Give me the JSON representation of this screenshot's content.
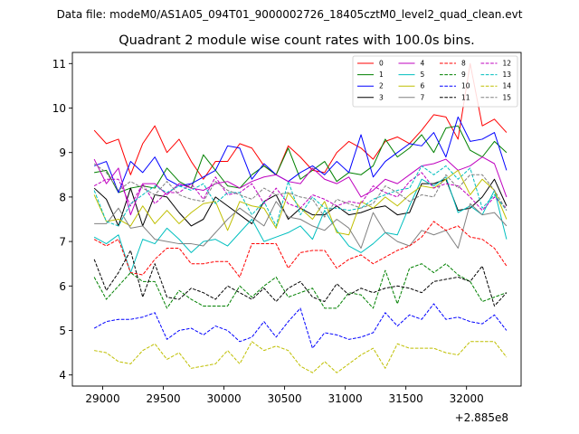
{
  "figure": {
    "suptitle": "Data file: modeM0/AS1A05_094T01_9000002726_18405cztM0_level2_quad_clean.evt"
  },
  "chart_data": {
    "type": "line",
    "title": "Quadrant 2 module wise count rates with 100.0s bins.",
    "xlabel": "",
    "ylabel": "",
    "x_offset_label": "+2.885e8",
    "xlim": [
      28750,
      32450
    ],
    "ylim": [
      3.75,
      11.25
    ],
    "xticks": [
      29000,
      29500,
      30000,
      30500,
      31000,
      31500,
      32000
    ],
    "xtick_labels": [
      "29000",
      "29500",
      "30000",
      "30500",
      "31000",
      "31500",
      "32000"
    ],
    "yticks": [
      4,
      5,
      6,
      7,
      8,
      9,
      10,
      11
    ],
    "ytick_labels": [
      "4",
      "5",
      "6",
      "7",
      "8",
      "9",
      "10",
      "11"
    ],
    "grid": false,
    "legend_position": "top-right",
    "legend_columns": 4,
    "x": [
      28930,
      29030,
      29130,
      29230,
      29330,
      29430,
      29530,
      29630,
      29730,
      29830,
      29930,
      30030,
      30130,
      30230,
      30330,
      30430,
      30530,
      30630,
      30730,
      30830,
      30930,
      31030,
      31130,
      31230,
      31330,
      31430,
      31530,
      31630,
      31730,
      31830,
      31930,
      32030,
      32130,
      32230,
      32330
    ],
    "series": [
      {
        "name": "0",
        "color": "#ff0000",
        "dash": "solid",
        "values": [
          9.5,
          9.2,
          9.3,
          8.5,
          9.2,
          9.6,
          9.0,
          9.3,
          8.8,
          8.4,
          8.8,
          8.8,
          9.2,
          9.1,
          8.7,
          8.5,
          9.15,
          8.9,
          8.6,
          8.55,
          9.0,
          9.25,
          9.1,
          8.85,
          9.25,
          9.35,
          9.2,
          9.5,
          9.85,
          9.8,
          9.3,
          11.0,
          9.6,
          9.75,
          9.45
        ]
      },
      {
        "name": "1",
        "color": "#008000",
        "dash": "solid",
        "values": [
          8.55,
          8.6,
          8.1,
          8.2,
          8.25,
          8.2,
          8.65,
          8.35,
          8.2,
          8.95,
          8.6,
          8.25,
          8.2,
          8.5,
          8.7,
          8.5,
          9.1,
          8.4,
          8.6,
          8.8,
          8.35,
          8.55,
          8.5,
          8.7,
          9.3,
          8.9,
          9.1,
          9.4,
          9.0,
          9.55,
          9.6,
          9.05,
          8.9,
          9.25,
          9.0
        ]
      },
      {
        "name": "2",
        "color": "#0000ff",
        "dash": "solid",
        "values": [
          8.7,
          8.8,
          8.1,
          8.8,
          8.55,
          8.9,
          8.4,
          8.25,
          8.3,
          8.45,
          8.6,
          9.15,
          9.1,
          8.4,
          8.75,
          8.5,
          8.35,
          8.55,
          8.7,
          8.5,
          8.8,
          8.55,
          9.4,
          8.45,
          8.8,
          9.0,
          9.2,
          9.15,
          9.45,
          8.9,
          9.8,
          9.25,
          9.3,
          9.45,
          8.6
        ]
      },
      {
        "name": "3",
        "color": "#000000",
        "dash": "solid",
        "values": [
          8.2,
          7.95,
          7.35,
          8.2,
          7.35,
          8.05,
          8.0,
          7.65,
          7.35,
          7.5,
          8.0,
          7.8,
          7.6,
          7.4,
          7.9,
          8.05,
          7.5,
          7.75,
          7.6,
          7.6,
          7.8,
          7.6,
          7.65,
          7.75,
          7.8,
          7.6,
          7.65,
          8.3,
          8.3,
          8.4,
          7.7,
          7.75,
          8.0,
          8.4,
          7.8
        ]
      },
      {
        "name": "4",
        "color": "#bf00bf",
        "dash": "solid",
        "values": [
          8.85,
          8.3,
          8.65,
          7.6,
          8.3,
          8.3,
          8.05,
          8.3,
          8.2,
          8.15,
          8.3,
          8.35,
          8.2,
          8.35,
          8.45,
          8.5,
          8.35,
          8.3,
          8.65,
          8.4,
          8.3,
          8.45,
          8.0,
          8.15,
          8.4,
          8.3,
          8.5,
          8.7,
          8.75,
          8.85,
          8.6,
          8.7,
          8.9,
          8.75,
          8.0
        ]
      },
      {
        "name": "5",
        "color": "#00bfbf",
        "dash": "solid",
        "values": [
          7.1,
          6.95,
          7.15,
          6.3,
          7.05,
          6.95,
          7.3,
          7.05,
          6.75,
          7.0,
          7.05,
          6.9,
          7.2,
          7.5,
          7.0,
          7.1,
          7.2,
          7.35,
          7.05,
          7.7,
          7.25,
          6.9,
          6.75,
          6.95,
          7.2,
          7.15,
          7.8,
          8.4,
          8.25,
          8.45,
          7.65,
          7.8,
          7.6,
          8.15,
          7.05
        ]
      },
      {
        "name": "6",
        "color": "#bfbf00",
        "dash": "solid",
        "values": [
          8.05,
          7.45,
          7.5,
          7.35,
          7.8,
          7.4,
          7.7,
          7.4,
          7.65,
          7.85,
          7.9,
          7.25,
          7.9,
          7.8,
          7.75,
          7.3,
          8.1,
          7.75,
          7.5,
          7.9,
          7.2,
          7.15,
          7.9,
          7.75,
          8.0,
          7.8,
          8.05,
          8.25,
          8.2,
          8.4,
          8.6,
          8.05,
          8.4,
          8.15,
          7.5
        ]
      },
      {
        "name": "7",
        "color": "#808080",
        "dash": "solid",
        "values": [
          7.4,
          7.4,
          7.75,
          7.3,
          7.35,
          7.05,
          7.0,
          6.95,
          6.95,
          6.9,
          7.2,
          7.5,
          7.75,
          7.55,
          7.35,
          7.9,
          7.55,
          7.5,
          7.35,
          7.25,
          7.5,
          7.3,
          6.85,
          7.65,
          7.2,
          7.0,
          6.9,
          7.25,
          7.15,
          7.25,
          6.85,
          7.85,
          7.6,
          7.65,
          7.35
        ]
      },
      {
        "name": "8",
        "color": "#ff0000",
        "dash": "dashed",
        "values": [
          7.05,
          6.9,
          7.05,
          6.3,
          6.25,
          6.6,
          6.85,
          6.85,
          6.5,
          6.5,
          6.55,
          6.55,
          6.2,
          6.95,
          6.95,
          6.95,
          6.4,
          6.75,
          6.8,
          6.8,
          6.4,
          6.6,
          6.7,
          6.5,
          6.65,
          6.8,
          6.9,
          7.1,
          7.45,
          7.25,
          7.35,
          7.1,
          7.05,
          6.85,
          6.45
        ]
      },
      {
        "name": "9",
        "color": "#008000",
        "dash": "dashed",
        "values": [
          6.2,
          5.7,
          6.0,
          6.3,
          6.1,
          6.1,
          5.5,
          5.9,
          5.7,
          5.55,
          5.55,
          5.55,
          6.0,
          5.75,
          6.0,
          6.2,
          5.75,
          5.85,
          5.95,
          5.5,
          5.5,
          5.85,
          5.8,
          5.5,
          6.35,
          5.6,
          6.4,
          6.5,
          6.3,
          6.5,
          6.25,
          6.1,
          5.65,
          5.75,
          5.85
        ]
      },
      {
        "name": "10",
        "color": "#0000ff",
        "dash": "dashed",
        "values": [
          5.05,
          5.2,
          5.25,
          5.25,
          5.3,
          5.4,
          4.8,
          5.0,
          5.05,
          4.9,
          5.1,
          5.0,
          4.75,
          4.85,
          5.2,
          4.85,
          5.2,
          5.5,
          4.6,
          4.95,
          4.9,
          4.8,
          4.85,
          4.95,
          5.4,
          5.1,
          5.35,
          5.25,
          5.6,
          5.25,
          5.3,
          5.2,
          5.15,
          5.35,
          5.0
        ]
      },
      {
        "name": "11",
        "color": "#000000",
        "dash": "dashed",
        "values": [
          6.6,
          5.9,
          6.3,
          6.8,
          5.75,
          6.5,
          5.75,
          5.7,
          5.95,
          5.85,
          5.7,
          6.0,
          5.85,
          5.7,
          5.95,
          5.65,
          5.95,
          6.1,
          5.75,
          5.65,
          6.05,
          5.8,
          5.95,
          5.85,
          5.95,
          6.0,
          5.95,
          5.85,
          6.1,
          6.15,
          6.2,
          6.1,
          6.45,
          5.55,
          5.85
        ]
      },
      {
        "name": "12",
        "color": "#bf00bf",
        "dash": "dashed",
        "values": [
          8.25,
          8.4,
          8.4,
          7.8,
          8.3,
          7.85,
          8.1,
          8.1,
          8.3,
          7.95,
          8.45,
          8.05,
          8.1,
          8.3,
          7.85,
          8.2,
          7.85,
          7.75,
          8.05,
          7.95,
          7.8,
          7.9,
          7.85,
          8.25,
          8.1,
          8.0,
          8.35,
          8.55,
          8.2,
          8.3,
          8.25,
          8.0,
          7.7,
          8.0,
          7.75
        ]
      },
      {
        "name": "13",
        "color": "#00bfbf",
        "dash": "dashed",
        "values": [
          8.15,
          7.45,
          7.35,
          7.85,
          8.05,
          8.25,
          8.1,
          8.25,
          8.15,
          8.3,
          7.85,
          8.1,
          8.1,
          7.6,
          7.9,
          7.35,
          8.35,
          7.6,
          8.0,
          7.75,
          7.75,
          7.7,
          7.75,
          7.95,
          8.05,
          8.15,
          8.2,
          8.7,
          8.5,
          8.7,
          8.4,
          8.65,
          7.75,
          8.05,
          7.7
        ]
      },
      {
        "name": "14",
        "color": "#bfbf00",
        "dash": "dashed",
        "values": [
          4.55,
          4.5,
          4.3,
          4.25,
          4.55,
          4.7,
          4.35,
          4.5,
          4.15,
          4.2,
          4.25,
          4.55,
          4.25,
          4.75,
          4.55,
          4.65,
          4.55,
          4.2,
          4.05,
          4.3,
          4.05,
          4.25,
          4.45,
          4.6,
          4.15,
          4.7,
          4.6,
          4.6,
          4.6,
          4.5,
          4.45,
          4.75,
          4.75,
          4.75,
          4.4
        ]
      },
      {
        "name": "15",
        "color": "#808080",
        "dash": "dashed",
        "values": [
          8.75,
          8.55,
          8.15,
          8.35,
          8.2,
          8.05,
          8.35,
          8.05,
          7.95,
          7.9,
          8.35,
          8.15,
          8.05,
          7.95,
          8.2,
          8.05,
          8.1,
          8.0,
          7.95,
          7.55,
          7.95,
          7.85,
          7.75,
          7.85,
          8.25,
          8.1,
          7.9,
          8.05,
          8.0,
          8.5,
          8.2,
          8.5,
          8.5,
          8.15,
          7.7
        ]
      }
    ]
  }
}
